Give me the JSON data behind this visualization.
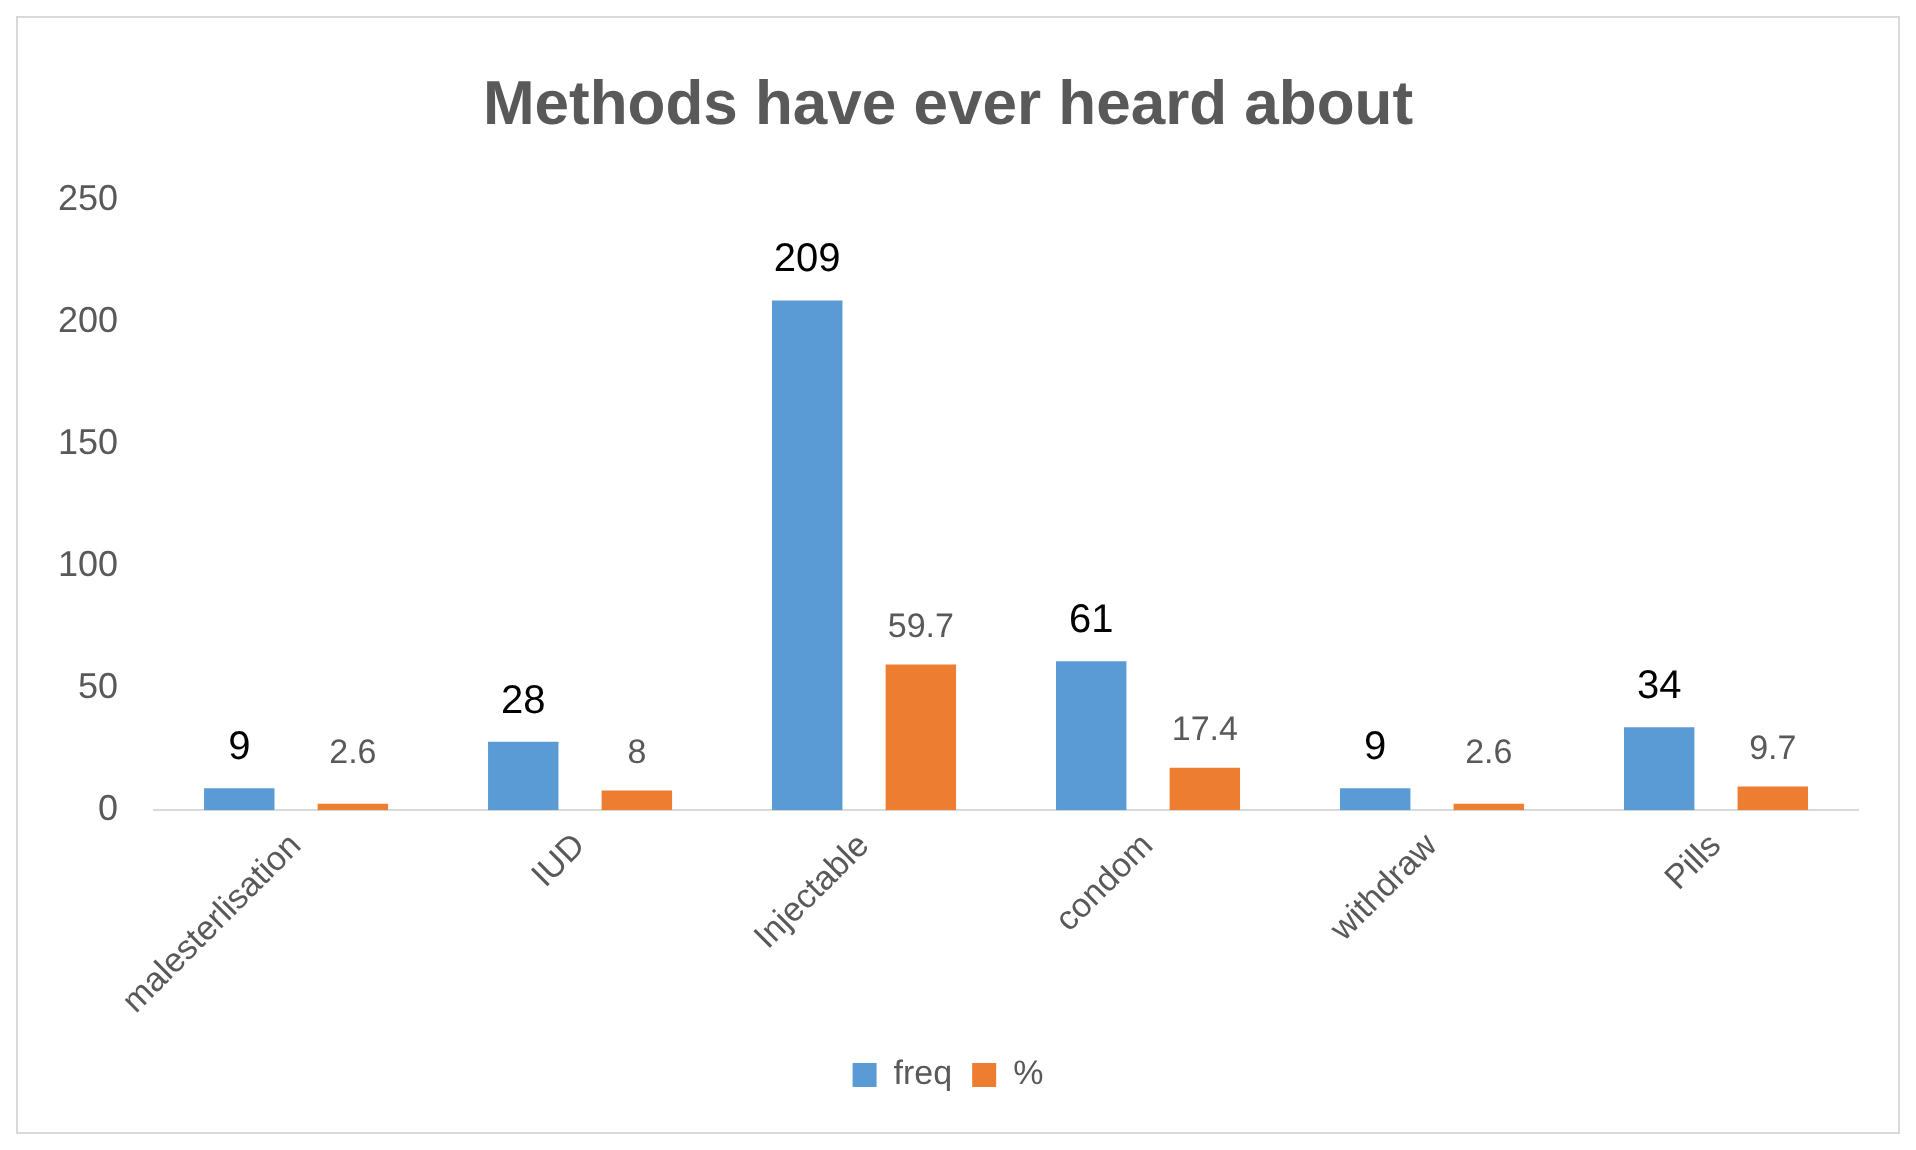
{
  "chart_data": {
    "type": "bar",
    "title": "Methods have ever heard about",
    "categories": [
      "malesterlisation",
      "IUD",
      "Injectable",
      "condom",
      "withdraw",
      "Pills"
    ],
    "series": [
      {
        "name": "freq",
        "color": "#5b9bd5",
        "values": [
          9,
          28,
          209,
          61,
          9,
          34
        ]
      },
      {
        "name": "%",
        "color": "#ed7d31",
        "values": [
          2.6,
          8,
          59.7,
          17.4,
          2.6,
          9.7
        ]
      }
    ],
    "ylim": [
      0,
      250
    ],
    "yticks": [
      0,
      50,
      100,
      150,
      200,
      250
    ],
    "grid": false,
    "legend": "bottom",
    "data_labels": true
  }
}
